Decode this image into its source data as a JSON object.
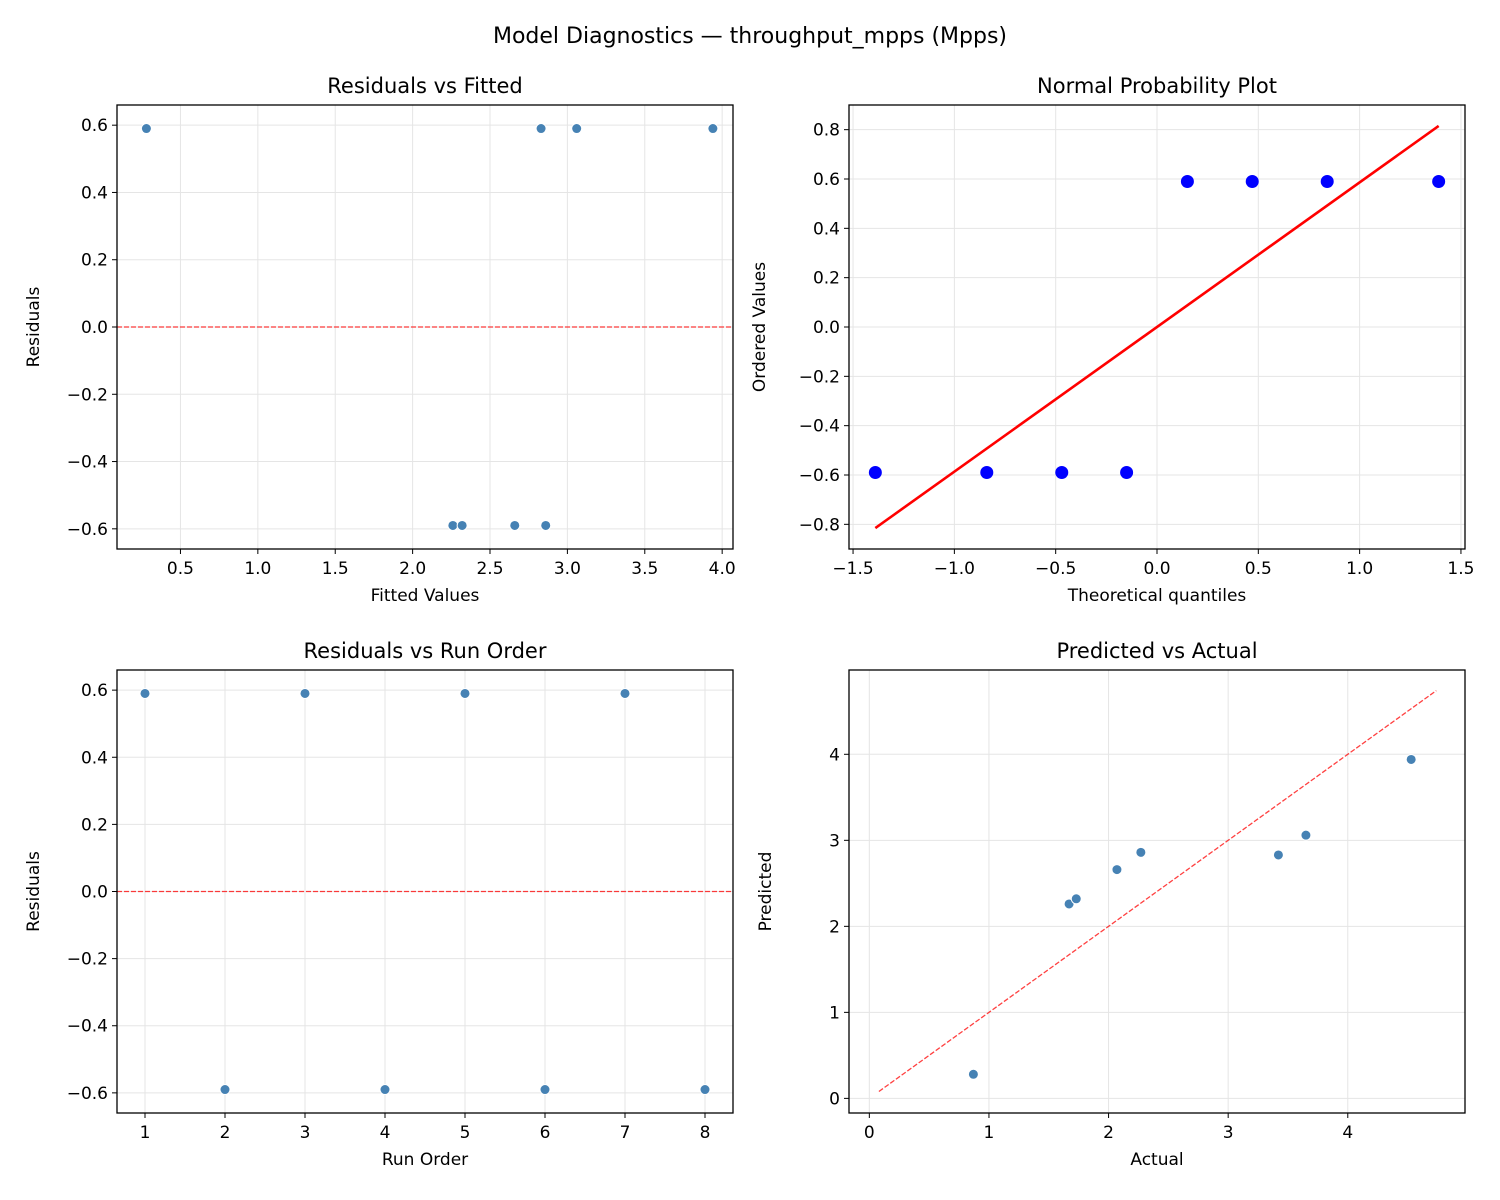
{
  "suptitle": "Model Diagnostics — throughput_mpps (Mpps)",
  "colors": {
    "point": "#4682b4",
    "qq_point": "#0000ff",
    "ref_line": "#ff0000"
  },
  "chart_data": [
    {
      "type": "scatter",
      "title": "Residuals vs Fitted",
      "xlabel": "Fitted Values",
      "ylabel": "Residuals",
      "xlim": [
        0.09,
        4.07
      ],
      "ylim": [
        -0.66,
        0.66
      ],
      "xticks": [
        0.5,
        1.0,
        1.5,
        2.0,
        2.5,
        3.0,
        3.5,
        4.0
      ],
      "yticks": [
        -0.6,
        -0.4,
        -0.2,
        0.0,
        0.2,
        0.4,
        0.6
      ],
      "grid": true,
      "x": [
        0.28,
        2.26,
        2.32,
        2.66,
        2.83,
        2.86,
        3.06,
        3.94
      ],
      "y": [
        0.59,
        -0.59,
        -0.59,
        -0.59,
        0.59,
        -0.59,
        0.59,
        0.59
      ],
      "hline": {
        "y": 0,
        "style": "dashed",
        "color": "#ff0000"
      }
    },
    {
      "type": "scatter",
      "title": "Normal Probability Plot",
      "xlabel": "Theoretical quantiles",
      "ylabel": "Ordered Values",
      "xlim": [
        -1.52,
        1.52
      ],
      "ylim": [
        -0.9,
        0.9
      ],
      "xticks": [
        -1.5,
        -1.0,
        -0.5,
        0.0,
        0.5,
        1.0,
        1.5
      ],
      "yticks": [
        -0.8,
        -0.6,
        -0.4,
        -0.2,
        0.0,
        0.2,
        0.4,
        0.6,
        0.8
      ],
      "grid": true,
      "x": [
        -1.39,
        -0.84,
        -0.47,
        -0.15,
        0.15,
        0.47,
        0.84,
        1.39
      ],
      "y": [
        -0.59,
        -0.59,
        -0.59,
        -0.59,
        0.59,
        0.59,
        0.59,
        0.59
      ],
      "fit_line": {
        "x": [
          -1.39,
          1.39
        ],
        "y": [
          -0.815,
          0.815
        ],
        "style": "solid",
        "color": "#ff0000"
      }
    },
    {
      "type": "scatter",
      "title": "Residuals vs Run Order",
      "xlabel": "Run Order",
      "ylabel": "Residuals",
      "xlim": [
        0.65,
        8.35
      ],
      "ylim": [
        -0.66,
        0.66
      ],
      "xticks": [
        1,
        2,
        3,
        4,
        5,
        6,
        7,
        8
      ],
      "yticks": [
        -0.6,
        -0.4,
        -0.2,
        0.0,
        0.2,
        0.4,
        0.6
      ],
      "grid": true,
      "x": [
        1,
        2,
        3,
        4,
        5,
        6,
        7,
        8
      ],
      "y": [
        0.59,
        -0.59,
        0.59,
        -0.59,
        0.59,
        -0.59,
        0.59,
        -0.59
      ],
      "hline": {
        "y": 0,
        "style": "dashed",
        "color": "#ff0000"
      }
    },
    {
      "type": "scatter",
      "title": "Predicted vs Actual",
      "xlabel": "Actual",
      "ylabel": "Predicted",
      "xlim": [
        -0.17,
        4.98
      ],
      "ylim": [
        -0.17,
        4.98
      ],
      "xticks": [
        0,
        1,
        2,
        3,
        4
      ],
      "yticks": [
        0,
        1,
        2,
        3,
        4
      ],
      "grid": true,
      "x": [
        0.87,
        1.67,
        1.73,
        2.07,
        2.27,
        3.42,
        3.65,
        4.53
      ],
      "y": [
        0.28,
        2.26,
        2.32,
        2.66,
        2.86,
        2.83,
        3.06,
        3.94
      ],
      "fit_line": {
        "x": [
          0.08,
          4.74
        ],
        "y": [
          0.08,
          4.74
        ],
        "style": "dashed",
        "color": "#ff0000"
      }
    }
  ]
}
